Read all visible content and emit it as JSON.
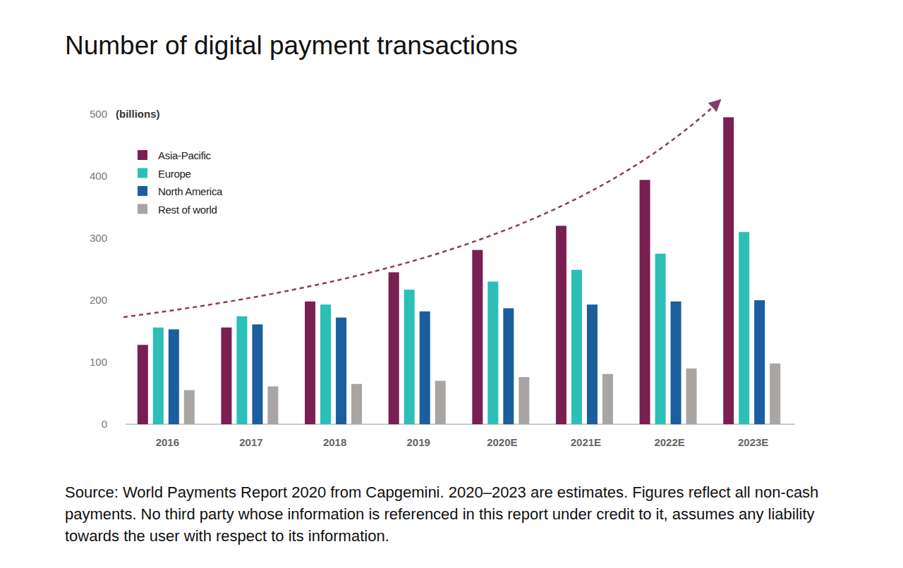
{
  "chart_data": {
    "type": "bar",
    "title": "Number of digital payment transactions",
    "y_label": "(billions)",
    "categories": [
      "2016",
      "2017",
      "2018",
      "2019",
      "2020E",
      "2021E",
      "2022E",
      "2023E"
    ],
    "series": [
      {
        "name": "Asia-Pacific",
        "color": "#7a1f52",
        "values": [
          128,
          156,
          198,
          245,
          281,
          320,
          394,
          495
        ]
      },
      {
        "name": "Europe",
        "color": "#2bbfb8",
        "values": [
          156,
          174,
          193,
          217,
          230,
          249,
          275,
          310
        ]
      },
      {
        "name": "North America",
        "color": "#1b5e9e",
        "values": [
          153,
          161,
          172,
          182,
          187,
          193,
          198,
          200
        ]
      },
      {
        "name": "Rest of world",
        "color": "#a8a5a3",
        "values": [
          55,
          61,
          65,
          70,
          76,
          81,
          90,
          98
        ]
      }
    ],
    "ylim": [
      0,
      500
    ],
    "yticks": [
      0,
      100,
      200,
      300,
      400,
      500
    ],
    "grid": false,
    "legend": "upper left",
    "source": "Source: World Payments Report 2020 from Capgemini. 2020–2023 are estimates. Figures reflect all non-cash payments. No third party whose information is referenced in this report under credit to it, assumes any liability towards the user with respect to its information."
  }
}
